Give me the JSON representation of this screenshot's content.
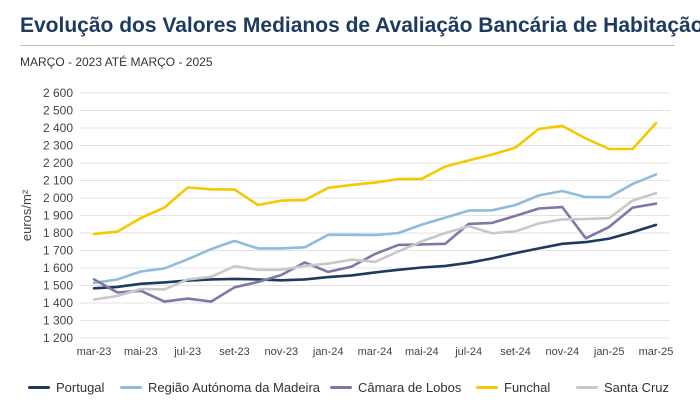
{
  "header": {
    "title": "Evolução dos Valores Medianos de Avaliação Bancária de Habitação",
    "subtitle": "MARÇO - 2023 ATÉ MARÇO - 2025"
  },
  "chart_data": {
    "type": "line",
    "title": "Evolução dos Valores Medianos de Avaliação Bancária de Habitação",
    "subtitle": "MARÇO - 2023 ATÉ MARÇO - 2025",
    "xlabel": "",
    "ylabel": "euros/m²",
    "ylim": [
      1200,
      2600
    ],
    "yticks": [
      1200,
      1300,
      1400,
      1500,
      1600,
      1700,
      1800,
      1900,
      2000,
      2100,
      2200,
      2300,
      2400,
      2500,
      2600
    ],
    "ytick_labels": [
      "1 200",
      "1 300",
      "1 400",
      "1 500",
      "1 600",
      "1 700",
      "1 800",
      "1 900",
      "2 000",
      "2 100",
      "2 200",
      "2 300",
      "2 400",
      "2 500",
      "2 600"
    ],
    "x_months": [
      "mar-23",
      "abr-23",
      "mai-23",
      "jun-23",
      "jul-23",
      "ago-23",
      "set-23",
      "out-23",
      "nov-23",
      "dez-23",
      "jan-24",
      "fev-24",
      "mar-24",
      "abr-24",
      "mai-24",
      "jun-24",
      "jul-24",
      "ago-24",
      "set-24",
      "out-24",
      "nov-24",
      "dez-24",
      "jan-25",
      "fev-25",
      "mar-25"
    ],
    "xtick_labels": [
      "mar-23",
      "mai-23",
      "jul-23",
      "set-23",
      "nov-23",
      "jan-24",
      "mar-24",
      "mai-24",
      "jul-24",
      "set-24",
      "nov-24",
      "jan-25",
      "mar-25"
    ],
    "grid": true,
    "legend_position": "bottom",
    "series": [
      {
        "name": "Portugal",
        "color": "#1d3a5f",
        "values": [
          1484,
          1492,
          1510,
          1518,
          1528,
          1535,
          1538,
          1535,
          1530,
          1535,
          1548,
          1558,
          1575,
          1590,
          1603,
          1612,
          1630,
          1655,
          1685,
          1712,
          1738,
          1748,
          1768,
          1805,
          1846
        ]
      },
      {
        "name": "Região Autónoma da Madeira",
        "color": "#8fbcdb",
        "values": [
          1515,
          1535,
          1580,
          1598,
          1650,
          1708,
          1755,
          1712,
          1712,
          1718,
          1790,
          1790,
          1788,
          1800,
          1848,
          1888,
          1928,
          1930,
          1960,
          2015,
          2040,
          2005,
          2005,
          2080,
          2135
        ]
      },
      {
        "name": "Câmara de Lobos",
        "color": "#8077a6",
        "values": [
          1535,
          1460,
          1470,
          1408,
          1425,
          1408,
          1490,
          1520,
          1560,
          1632,
          1578,
          1608,
          1680,
          1732,
          1735,
          1738,
          1852,
          1858,
          1898,
          1940,
          1948,
          1770,
          1835,
          1945,
          1968
        ]
      },
      {
        "name": "Funchal",
        "color": "#f5c800",
        "values": [
          1795,
          1808,
          1885,
          1945,
          2060,
          2050,
          2048,
          1960,
          1985,
          1988,
          2058,
          2075,
          2088,
          2108,
          2110,
          2180,
          2215,
          2248,
          2288,
          2395,
          2412,
          2340,
          2280,
          2280,
          2428
        ]
      },
      {
        "name": "Santa Cruz",
        "color": "#c8c8c8",
        "values": [
          1420,
          1440,
          1480,
          1478,
          1535,
          1550,
          1610,
          1590,
          1590,
          1612,
          1625,
          1648,
          1635,
          1695,
          1752,
          1800,
          1838,
          1798,
          1810,
          1855,
          1878,
          1880,
          1885,
          1985,
          2028
        ]
      }
    ]
  }
}
